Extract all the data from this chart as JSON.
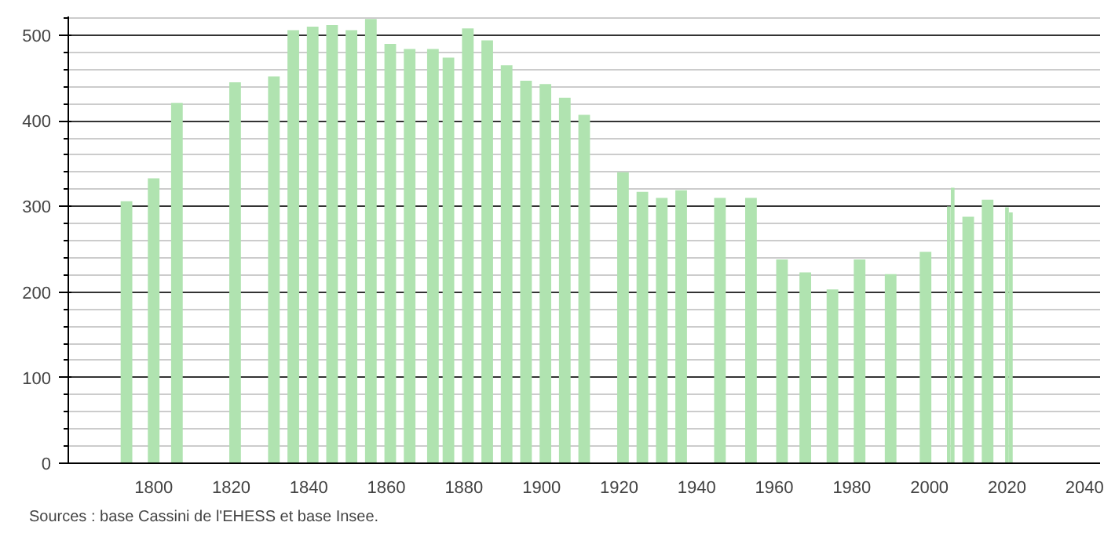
{
  "chart_data": {
    "type": "bar",
    "x": [
      1793,
      1800,
      1806,
      1821,
      1831,
      1836,
      1841,
      1846,
      1851,
      1856,
      1861,
      1866,
      1872,
      1876,
      1881,
      1886,
      1891,
      1896,
      1901,
      1906,
      1911,
      1921,
      1926,
      1931,
      1936,
      1946,
      1954,
      1962,
      1968,
      1975,
      1982,
      1990,
      1999,
      2005,
      2006,
      2010,
      2015,
      2020,
      2021
    ],
    "values": [
      306,
      333,
      421,
      445,
      452,
      506,
      510,
      512,
      506,
      519,
      490,
      484,
      484,
      474,
      508,
      494,
      465,
      447,
      443,
      427,
      407,
      340,
      317,
      310,
      319,
      310,
      310,
      238,
      223,
      203,
      238,
      221,
      247,
      300,
      322,
      288,
      308,
      299,
      293
    ],
    "color": "#b0e3b0",
    "xlim": [
      1778,
      2044
    ],
    "xticks": [
      1800,
      1820,
      1840,
      1860,
      1880,
      1900,
      1920,
      1940,
      1960,
      1980,
      2000,
      2020,
      2040
    ],
    "ylim": [
      0,
      522
    ],
    "yticks": [
      0,
      100,
      200,
      300,
      400,
      500
    ],
    "grid": "y",
    "annotations": [
      "Sources : base Cassini de l'EHESS et base Insee."
    ]
  }
}
